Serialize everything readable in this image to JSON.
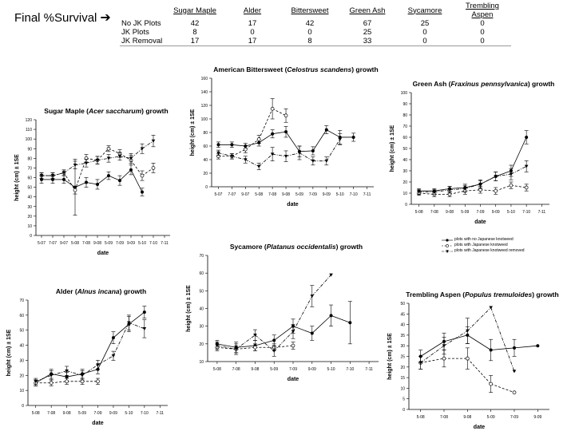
{
  "header": {
    "label": "Final %Survival",
    "arrow_icon": "arrow-right-icon"
  },
  "survival_table": {
    "columns": [
      "Sugar Maple",
      "Alder",
      "Bittersweet",
      "Green Ash",
      "Sycamore",
      "Trembling Aspen"
    ],
    "rows": [
      {
        "label": "No JK Plots",
        "values": [
          "42",
          "17",
          "42",
          "67",
          "25",
          "0"
        ]
      },
      {
        "label": "JK Plots",
        "values": [
          "8",
          "0",
          "0",
          "25",
          "0",
          "0"
        ]
      },
      {
        "label": "JK Removal",
        "values": [
          "17",
          "17",
          "8",
          "33",
          "0",
          "0"
        ]
      }
    ]
  },
  "legend": {
    "entries": [
      {
        "marker": "filled-circle",
        "label": "plots with no Japanese knotweed"
      },
      {
        "marker": "open-circle",
        "label": "plots with Japanese knotweed"
      },
      {
        "marker": "filled-triangle",
        "label": "plots with Japanese knotweed removed"
      }
    ]
  },
  "colors": {
    "line": "#000000",
    "axis": "#000000",
    "background": "#ffffff"
  },
  "chart_data": [
    {
      "id": "sugar-maple",
      "type": "line",
      "title": "Sugar Maple (Acer saccharum) growth",
      "title_parts": [
        "Sugar Maple (",
        "Acer saccharum",
        ") growth"
      ],
      "xlabel": "date",
      "ylabel": "height (cm) ± 1SE",
      "categories": [
        "5-07",
        "7-07",
        "9-07",
        "5-08",
        "7-08",
        "9-08",
        "5-09",
        "7-09",
        "9-09",
        "5-10",
        "7-10",
        "7-11"
      ],
      "ylim": [
        0,
        120
      ],
      "yticks": [
        0,
        10,
        20,
        30,
        40,
        50,
        60,
        70,
        80,
        90,
        100,
        110,
        120
      ],
      "series": [
        {
          "name": "plots with no Japanese knotweed",
          "marker": "filled-circle",
          "dash": "solid",
          "values": [
            58,
            58,
            58,
            50,
            55,
            53,
            62,
            57,
            68,
            45,
            null,
            null
          ],
          "err": [
            4,
            4,
            4,
            29,
            5,
            5,
            4,
            5,
            5,
            4,
            null,
            null
          ]
        },
        {
          "name": "plots with Japanese knotweed",
          "marker": "open-circle",
          "dash": "dash",
          "values": [
            62,
            62,
            65,
            47,
            80,
            78,
            90,
            85,
            78,
            62,
            70,
            null
          ],
          "err": [
            3,
            3,
            3,
            4,
            4,
            4,
            3,
            4,
            5,
            5,
            5,
            null
          ]
        },
        {
          "name": "plots with Japanese knotweed removed",
          "marker": "filled-triangle",
          "dash": "dashdot",
          "values": [
            62,
            62,
            65,
            73,
            75,
            78,
            80,
            82,
            80,
            90,
            98,
            null
          ],
          "err": [
            3,
            3,
            3,
            4,
            4,
            4,
            4,
            4,
            5,
            5,
            6,
            null
          ]
        }
      ]
    },
    {
      "id": "bittersweet",
      "type": "line",
      "title": "American Bittersweet (Celostrus scandens) growth",
      "title_parts": [
        "American Bittersweet (",
        "Celostrus scandens",
        ") growth"
      ],
      "xlabel": "date",
      "ylabel": "height (cm) ± 1SE",
      "categories": [
        "5-07",
        "7-07",
        "9-07",
        "5-08",
        "7-08",
        "9-08",
        "5-09",
        "7-09",
        "9-09",
        "5-10",
        "7-10",
        "7-11"
      ],
      "ylim": [
        0,
        160
      ],
      "yticks": [
        0,
        20,
        40,
        60,
        80,
        100,
        120,
        140,
        160
      ],
      "series": [
        {
          "name": "plots with no Japanese knotweed",
          "marker": "filled-circle",
          "dash": "solid",
          "values": [
            62,
            62,
            60,
            65,
            78,
            81,
            52,
            53,
            84,
            73,
            73,
            null
          ],
          "err": [
            4,
            4,
            4,
            5,
            6,
            8,
            8,
            6,
            6,
            10,
            6,
            null
          ]
        },
        {
          "name": "plots with Japanese knotweed",
          "marker": "open-circle",
          "dash": "dash",
          "values": [
            45,
            45,
            55,
            70,
            115,
            105,
            null,
            null,
            null,
            null,
            null,
            null
          ],
          "err": [
            4,
            4,
            5,
            6,
            15,
            10,
            null,
            null,
            null,
            null,
            null,
            null
          ]
        },
        {
          "name": "plots with Japanese knotweed removed",
          "marker": "filled-triangle",
          "dash": "dashdot",
          "values": [
            50,
            45,
            40,
            30,
            48,
            45,
            50,
            38,
            38,
            70,
            null,
            null
          ],
          "err": [
            4,
            4,
            5,
            5,
            10,
            8,
            10,
            6,
            6,
            8,
            null,
            null
          ]
        }
      ]
    },
    {
      "id": "green-ash",
      "type": "line",
      "title": "Green Ash (Fraxinus pennsylvanica) growth",
      "title_parts": [
        "Green Ash (",
        "Fraxinus pennsylvanica",
        ") growth"
      ],
      "xlabel": "date",
      "ylabel": "height (cm) ± 1SE",
      "categories": [
        "5-08",
        "7-08",
        "9-08",
        "5-09",
        "7-09",
        "9-09",
        "5-10",
        "7-10",
        "7-11"
      ],
      "ylim": [
        0,
        100
      ],
      "yticks": [
        0,
        10,
        20,
        30,
        40,
        50,
        60,
        70,
        80,
        90,
        100
      ],
      "series": [
        {
          "name": "plots with no Japanese knotweed",
          "marker": "filled-circle",
          "dash": "solid",
          "values": [
            12,
            12,
            14,
            15,
            18,
            25,
            30,
            60,
            null
          ],
          "err": [
            2,
            2,
            2,
            3,
            3,
            4,
            5,
            6,
            null
          ]
        },
        {
          "name": "plots with Japanese knotweed",
          "marker": "open-circle",
          "dash": "dash",
          "values": [
            10,
            9,
            9,
            12,
            13,
            12,
            17,
            15,
            null
          ],
          "err": [
            2,
            2,
            2,
            3,
            3,
            3,
            3,
            3,
            null
          ]
        },
        {
          "name": "plots with Japanese knotweed removed",
          "marker": "filled-triangle",
          "dash": "dashdot",
          "values": [
            11,
            11,
            13,
            14,
            18,
            25,
            27,
            34,
            null
          ],
          "err": [
            2,
            2,
            3,
            3,
            4,
            4,
            5,
            5,
            null
          ]
        }
      ]
    },
    {
      "id": "sycamore",
      "type": "line",
      "title": "Sycamore (Platanus occidentalis) growth",
      "title_parts": [
        "Sycamore (",
        "Platanus occidentalis",
        ") growth"
      ],
      "xlabel": "date",
      "ylabel": "height (cm) ± 1SE",
      "categories": [
        "5-08",
        "7-08",
        "9-08",
        "5-09",
        "7-09",
        "9-09",
        "5-10",
        "7-10",
        "7-11"
      ],
      "ylim": [
        10,
        70
      ],
      "yticks": [
        10,
        20,
        30,
        40,
        50,
        60,
        70
      ],
      "series": [
        {
          "name": "plots with no Japanese knotweed",
          "marker": "filled-circle",
          "dash": "solid",
          "values": [
            20,
            18,
            19,
            22,
            30,
            26,
            36,
            32,
            null
          ],
          "err": [
            2,
            3,
            3,
            3,
            4,
            4,
            6,
            12,
            null
          ]
        },
        {
          "name": "plots with Japanese knotweed",
          "marker": "open-circle",
          "dash": "dash",
          "values": [
            18,
            17,
            18,
            18,
            19,
            null,
            null,
            null,
            null
          ],
          "err": [
            2,
            2,
            2,
            2,
            2,
            null,
            null,
            null,
            null
          ]
        },
        {
          "name": "plots with Japanese knotweed removed",
          "marker": "filled-triangle",
          "dash": "dashdot",
          "values": [
            19,
            17,
            25,
            16,
            27,
            47,
            59,
            null,
            null
          ],
          "err": [
            2,
            3,
            3,
            3,
            4,
            6,
            0,
            null,
            null
          ]
        }
      ]
    },
    {
      "id": "alder",
      "type": "line",
      "title": "Alder (Alnus incana) growth",
      "title_parts": [
        "Alder (",
        "Alnus incana",
        ") growth"
      ],
      "xlabel": "date",
      "ylabel": "height (cm) ± 1SE",
      "categories": [
        "5-08",
        "7-08",
        "9-08",
        "5-09",
        "7-09",
        "9-09",
        "5-10",
        "7-10",
        "7-11"
      ],
      "ylim": [
        0,
        70
      ],
      "yticks": [
        0,
        10,
        20,
        30,
        40,
        50,
        60,
        70
      ],
      "series": [
        {
          "name": "plots with no Japanese knotweed",
          "marker": "filled-circle",
          "dash": "solid",
          "values": [
            15,
            21,
            19,
            21,
            24,
            45,
            54,
            62,
            null
          ],
          "err": [
            2,
            3,
            3,
            3,
            3,
            4,
            5,
            4,
            null
          ]
        },
        {
          "name": "plots with Japanese knotweed",
          "marker": "open-circle",
          "dash": "dash",
          "values": [
            15,
            15,
            16,
            16,
            16,
            null,
            null,
            null,
            null
          ],
          "err": [
            2,
            2,
            2,
            2,
            2,
            null,
            null,
            null,
            null
          ]
        },
        {
          "name": "plots with Japanese knotweed removed",
          "marker": "filled-triangle",
          "dash": "dashdot",
          "values": [
            16,
            20,
            23,
            20,
            27,
            33,
            55,
            51,
            null
          ],
          "err": [
            2,
            3,
            3,
            3,
            3,
            3,
            5,
            6,
            null
          ]
        }
      ]
    },
    {
      "id": "trembling-aspen",
      "type": "line",
      "title": "Trembling Aspen (Populus tremuloides) growth",
      "title_parts": [
        "Trembling Aspen (",
        "Populus tremuloides",
        ") growth"
      ],
      "xlabel": "date",
      "ylabel": "height (cm) ± 1SE",
      "categories": [
        "5-08",
        "7-08",
        "9-08",
        "5-09",
        "7-09",
        "9-09"
      ],
      "ylim": [
        0,
        50
      ],
      "yticks": [
        0,
        5,
        10,
        15,
        20,
        25,
        30,
        35,
        40,
        45,
        50
      ],
      "series": [
        {
          "name": "plots with no Japanese knotweed",
          "marker": "filled-circle",
          "dash": "solid",
          "values": [
            25,
            32,
            35,
            28,
            29,
            30
          ],
          "err": [
            3,
            4,
            4,
            5,
            4,
            0
          ]
        },
        {
          "name": "plots with Japanese knotweed",
          "marker": "open-circle",
          "dash": "dash",
          "values": [
            22,
            24,
            24,
            12,
            8,
            null
          ],
          "err": [
            3,
            4,
            5,
            4,
            0,
            null
          ]
        },
        {
          "name": "plots with Japanese knotweed removed",
          "marker": "filled-triangle",
          "dash": "dashdot",
          "values": [
            22,
            30,
            37,
            48,
            18,
            null
          ],
          "err": [
            3,
            4,
            6,
            0,
            0,
            null
          ]
        }
      ]
    }
  ]
}
